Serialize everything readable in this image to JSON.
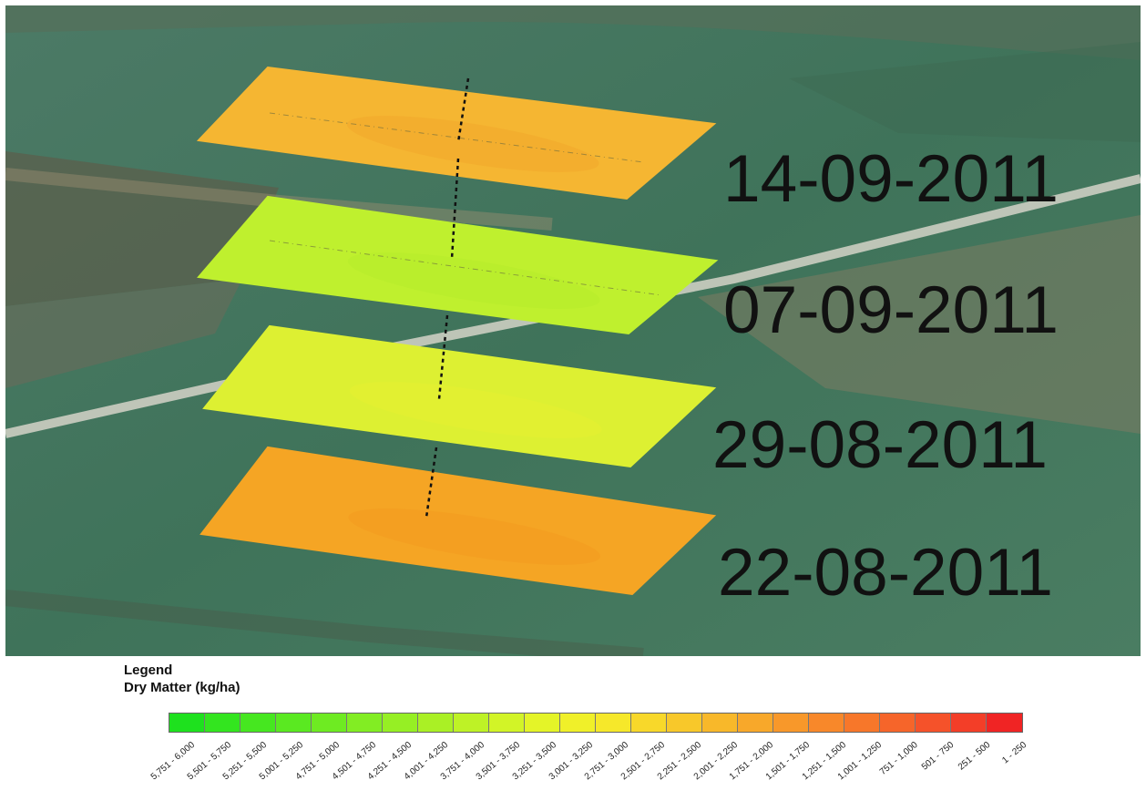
{
  "layers": [
    {
      "date": "14-09-2011",
      "color": "#F5B632"
    },
    {
      "date": "07-09-2011",
      "color": "#BFF02E"
    },
    {
      "date": "29-08-2011",
      "color": "#DDF032"
    },
    {
      "date": "22-08-2011",
      "color": "#F5A524"
    }
  ],
  "legend": {
    "title": "Legend",
    "subtitle": "Dry Matter (kg/ha)",
    "classes": [
      {
        "label": "5,751 - 6,000",
        "color": "#1EE11E"
      },
      {
        "label": "5,501 - 5,750",
        "color": "#33E51F"
      },
      {
        "label": "5,251 - 5,500",
        "color": "#46E720"
      },
      {
        "label": "5,001 - 5,250",
        "color": "#5AE921"
      },
      {
        "label": "4,751 - 5,000",
        "color": "#6EEB22"
      },
      {
        "label": "4,501 - 4,750",
        "color": "#82ED23"
      },
      {
        "label": "4,251 - 4,500",
        "color": "#96EF24"
      },
      {
        "label": "4,001 - 4,250",
        "color": "#AAF025"
      },
      {
        "label": "3,751 - 4,000",
        "color": "#BEF226"
      },
      {
        "label": "3,501 - 3,750",
        "color": "#D2F427"
      },
      {
        "label": "3,251 - 3,500",
        "color": "#E4F428"
      },
      {
        "label": "3,001 - 3,250",
        "color": "#F0F029"
      },
      {
        "label": "2,751 - 3,000",
        "color": "#F6E82A"
      },
      {
        "label": "2,501 - 2,750",
        "color": "#F8D82A"
      },
      {
        "label": "2,251 - 2,500",
        "color": "#F8C82A"
      },
      {
        "label": "2,001 - 2,250",
        "color": "#F8B82A"
      },
      {
        "label": "1,751 - 2,000",
        "color": "#F8A82A"
      },
      {
        "label": "1,501 - 1,750",
        "color": "#F8982A"
      },
      {
        "label": "1,251 - 1,500",
        "color": "#F8882A"
      },
      {
        "label": "1,001 - 1,250",
        "color": "#F7772A"
      },
      {
        "label": "751 - 1,000",
        "color": "#F6652A"
      },
      {
        "label": "501 - 750",
        "color": "#F5522A"
      },
      {
        "label": "251 - 500",
        "color": "#F33E28"
      },
      {
        "label": "1 - 250",
        "color": "#F02424"
      }
    ]
  }
}
